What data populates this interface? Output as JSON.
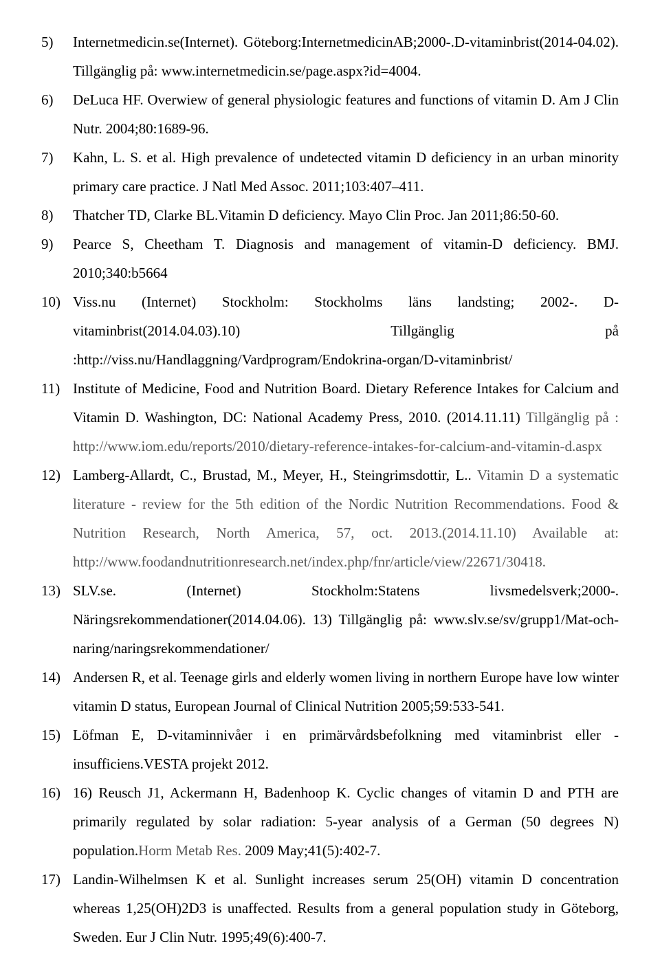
{
  "references": [
    {
      "num": "5)",
      "text": "Internetmedicin.se(Internet). Göteborg:InternetmedicinAB;2000-.D-vitaminbrist(2014-04.02). Tillgänglig på: www.internetmedicin.se/page.aspx?id=4004."
    },
    {
      "num": "6)",
      "text": "DeLuca HF. Overwiew of general physiologic features and functions of vitamin D. Am J Clin Nutr. 2004;80:1689-96."
    },
    {
      "num": "7)",
      "text": "Kahn, L. S. et al. High prevalence of undetected vitamin D deficiency in an urban minority primary care practice. J Natl Med Assoc. 2011;103:407–411."
    },
    {
      "num": "8)",
      "text": "Thatcher TD, Clarke BL.Vitamin D deficiency. Mayo Clin Proc. Jan 2011;86:50-60."
    },
    {
      "num": "9)",
      "text": "Pearce S, Cheetham T. Diagnosis and management of vitamin-D deficiency. BMJ. 2010;340:b5664"
    },
    {
      "num": "10)",
      "text": "Viss.nu (Internet) Stockholm: Stockholms läns landsting; 2002-. D-vitaminbrist(2014.04.03).10) Tillgänglig på :http://viss.nu/Handlaggning/Vardprogram/Endokrina-organ/D-vitaminbrist/"
    },
    {
      "num": "11)",
      "textPart1": "Institute of Medicine, Food and Nutrition Board. Dietary Reference Intakes for Calcium and Vitamin D. Washington, DC: National Academy Press, 2010. (2014.11.11) ",
      "textPart2": "Tillgänglig på : http://www.iom.edu/reports/2010/dietary-reference-intakes-for-calcium-and-vitamin-d.aspx"
    },
    {
      "num": "12)",
      "textPart1": "Lamberg-Allardt, C., Brustad, M., Meyer, H., Steingrimsdottir, L.. ",
      "textPart2": "Vitamin D a systematic literature - review for the 5th edition of the Nordic Nutrition Recommendations. Food & Nutrition Research, North America, 57, oct. 2013.(2014.11.10) Available at: http://www.foodandnutritionresearch.net/index.php/fnr/article/view/22671/30418."
    },
    {
      "num": "13)",
      "text": "SLV.se. (Internet) Stockholm:Statens livsmedelsverk;2000-. Näringsrekommendationer(2014.04.06). 13) Tillgänglig på: www.slv.se/sv/grupp1/Mat-och-naring/naringsrekommendationer/"
    },
    {
      "num": "14)",
      "text": "Andersen R, et al. Teenage girls and elderly women living in northern Europe have low winter vitamin D status, European Journal of Clinical Nutrition 2005;59:533-541."
    },
    {
      "num": "15)",
      "text": "Löfman E, D-vitaminnivåer i en primärvårdsbefolkning med vitaminbrist eller -insufficiens.VESTA projekt 2012."
    },
    {
      "num": "16)",
      "textPart1": "16) Reusch J1, Ackermann H, Badenhoop K. Cyclic changes of vitamin D and PTH are primarily regulated by solar radiation: 5-year analysis of a German (50 degrees N) population.",
      "textPart2": "Horm Metab Res.",
      "textPart3": " 2009 May;41(5):402-7."
    },
    {
      "num": "17)",
      "text": "Landin-Wilhelmsen K et al. Sunlight increases serum 25(OH) vitamin D concentration whereas 1,25(OH)2D3 is unaffected. Results from a general population study in Göteborg, Sweden. Eur J Clin Nutr. 1995;49(6):400-7."
    }
  ]
}
